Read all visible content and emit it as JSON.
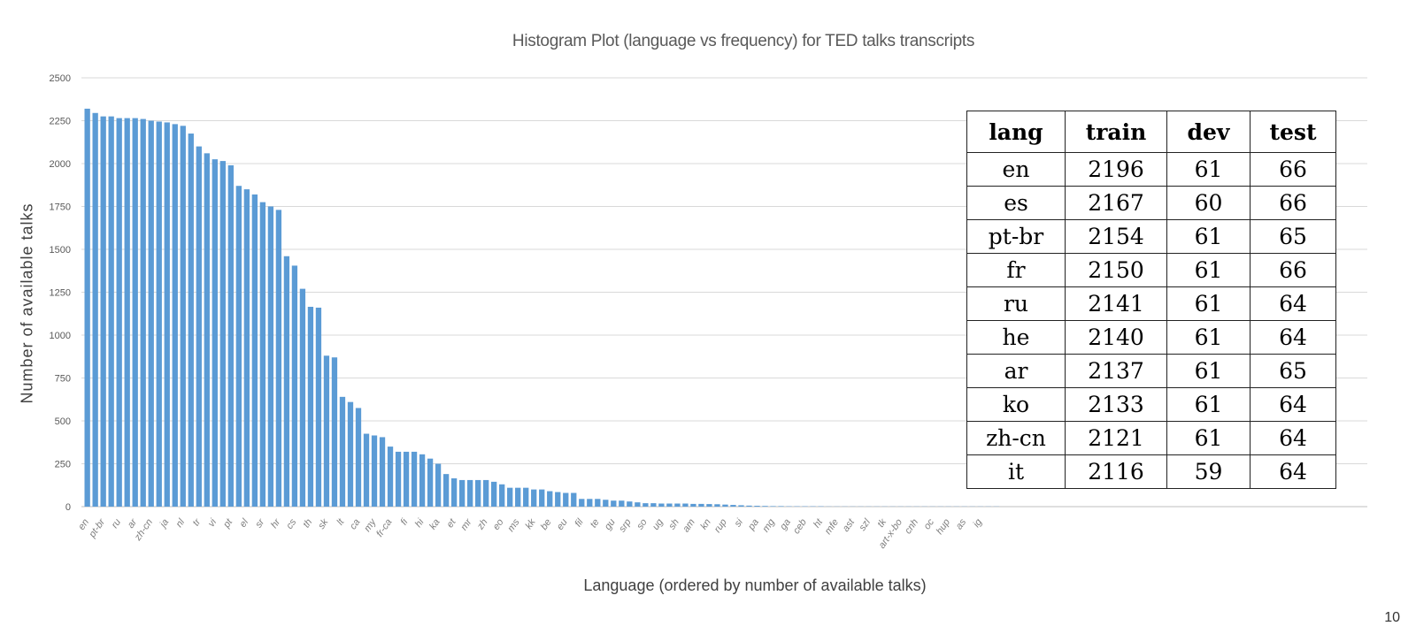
{
  "chart_data": {
    "type": "bar",
    "title": "Histogram Plot (language vs frequency) for TED talks transcripts",
    "xlabel": "Language (ordered by number of available talks)",
    "ylabel": "Number of available talks",
    "ylim": [
      0,
      2500
    ],
    "yticks": [
      0,
      250,
      500,
      750,
      1000,
      1250,
      1500,
      1750,
      2000,
      2250,
      2500
    ],
    "grid": true,
    "color": "#5b9bd5",
    "x_tick_labels": [
      "en",
      "pt-br",
      "ru",
      "ar",
      "zh-cn",
      "ja",
      "nl",
      "tr",
      "vi",
      "pt",
      "el",
      "sr",
      "hr",
      "cs",
      "th",
      "sk",
      "lt",
      "ca",
      "my",
      "fr-ca",
      "fi",
      "hi",
      "ka",
      "et",
      "mr",
      "zh",
      "eo",
      "ms",
      "kk",
      "be",
      "eu",
      "fil",
      "te",
      "gu",
      "srp",
      "so",
      "ug",
      "sh",
      "am",
      "kn",
      "rup",
      "si",
      "pa",
      "mg",
      "ga",
      "ceb",
      "ht",
      "mfe",
      "ast",
      "szl",
      "tk",
      "art-x-bo",
      "cnh",
      "oc",
      "hup",
      "as",
      "ig"
    ],
    "values": [
      2320,
      2295,
      2275,
      2275,
      2265,
      2265,
      2265,
      2260,
      2250,
      2245,
      2240,
      2230,
      2220,
      2175,
      2100,
      2060,
      2025,
      2015,
      1990,
      1870,
      1850,
      1820,
      1775,
      1750,
      1730,
      1460,
      1405,
      1270,
      1165,
      1160,
      880,
      870,
      640,
      610,
      575,
      425,
      415,
      405,
      350,
      320,
      320,
      320,
      305,
      280,
      250,
      190,
      165,
      155,
      155,
      155,
      155,
      145,
      130,
      110,
      110,
      110,
      100,
      100,
      90,
      85,
      80,
      80,
      45,
      45,
      45,
      40,
      35,
      35,
      30,
      25,
      20,
      20,
      18,
      18,
      18,
      18,
      16,
      16,
      15,
      14,
      12,
      10,
      8,
      6,
      5,
      4,
      3,
      3,
      2,
      2,
      2,
      2,
      2,
      1,
      1,
      1,
      1,
      1,
      1,
      1,
      1,
      1,
      1,
      1,
      1,
      1,
      1,
      1,
      1,
      1,
      1,
      1,
      1,
      1,
      1
    ]
  },
  "table": {
    "headers": [
      "lang",
      "train",
      "dev",
      "test"
    ],
    "rows": [
      [
        "en",
        "2196",
        "61",
        "66"
      ],
      [
        "es",
        "2167",
        "60",
        "66"
      ],
      [
        "pt-br",
        "2154",
        "61",
        "65"
      ],
      [
        "fr",
        "2150",
        "61",
        "66"
      ],
      [
        "ru",
        "2141",
        "61",
        "64"
      ],
      [
        "he",
        "2140",
        "61",
        "64"
      ],
      [
        "ar",
        "2137",
        "61",
        "65"
      ],
      [
        "ko",
        "2133",
        "61",
        "64"
      ],
      [
        "zh-cn",
        "2121",
        "61",
        "64"
      ],
      [
        "it",
        "2116",
        "59",
        "64"
      ]
    ]
  },
  "page_number": "10"
}
